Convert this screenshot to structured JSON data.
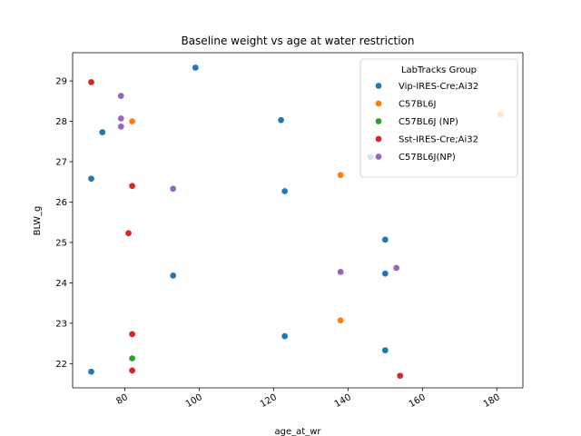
{
  "chart_data": {
    "type": "scatter",
    "title": "Baseline weight vs age at water restriction",
    "xlabel": "age_at_wr",
    "ylabel": "BLW_g",
    "xlim": [
      66,
      187
    ],
    "ylim": [
      21.4,
      29.7
    ],
    "x_ticks": [
      80,
      100,
      120,
      140,
      160,
      180
    ],
    "y_ticks": [
      22,
      23,
      24,
      25,
      26,
      27,
      28,
      29
    ],
    "x_tick_rotation": 30,
    "grid": false,
    "legend": {
      "title": "LabTracks Group",
      "placement": "top-right"
    },
    "series": [
      {
        "name": "Vip-IRES-Cre;Ai32",
        "color": "#1f77b4",
        "points": [
          {
            "x": 71,
            "y": 26.58
          },
          {
            "x": 71,
            "y": 21.8
          },
          {
            "x": 74,
            "y": 27.73
          },
          {
            "x": 93,
            "y": 24.18
          },
          {
            "x": 99,
            "y": 29.33
          },
          {
            "x": 122,
            "y": 28.03
          },
          {
            "x": 123,
            "y": 26.27
          },
          {
            "x": 123,
            "y": 22.68
          },
          {
            "x": 146,
            "y": 27.12
          },
          {
            "x": 150,
            "y": 25.07
          },
          {
            "x": 150,
            "y": 24.23
          },
          {
            "x": 150,
            "y": 22.33
          }
        ]
      },
      {
        "name": "C57BL6J",
        "color": "#ff7f0e",
        "points": [
          {
            "x": 82,
            "y": 28.0
          },
          {
            "x": 138,
            "y": 26.67
          },
          {
            "x": 138,
            "y": 23.07
          },
          {
            "x": 181,
            "y": 28.17
          }
        ]
      },
      {
        "name": "C57BL6J (NP)",
        "color": "#2ca02c",
        "points": [
          {
            "x": 82,
            "y": 22.13
          }
        ]
      },
      {
        "name": "Sst-IRES-Cre;Ai32",
        "color": "#d62728",
        "points": [
          {
            "x": 71,
            "y": 28.97
          },
          {
            "x": 81,
            "y": 25.23
          },
          {
            "x": 82,
            "y": 26.4
          },
          {
            "x": 82,
            "y": 22.73
          },
          {
            "x": 82,
            "y": 21.83
          },
          {
            "x": 154,
            "y": 21.7
          }
        ]
      },
      {
        "name": "C57BL6J(NP)",
        "color": "#9467bd",
        "points": [
          {
            "x": 79,
            "y": 28.63
          },
          {
            "x": 79,
            "y": 28.07
          },
          {
            "x": 79,
            "y": 27.87
          },
          {
            "x": 93,
            "y": 26.33
          },
          {
            "x": 138,
            "y": 24.27
          },
          {
            "x": 153,
            "y": 24.37
          }
        ]
      }
    ]
  }
}
